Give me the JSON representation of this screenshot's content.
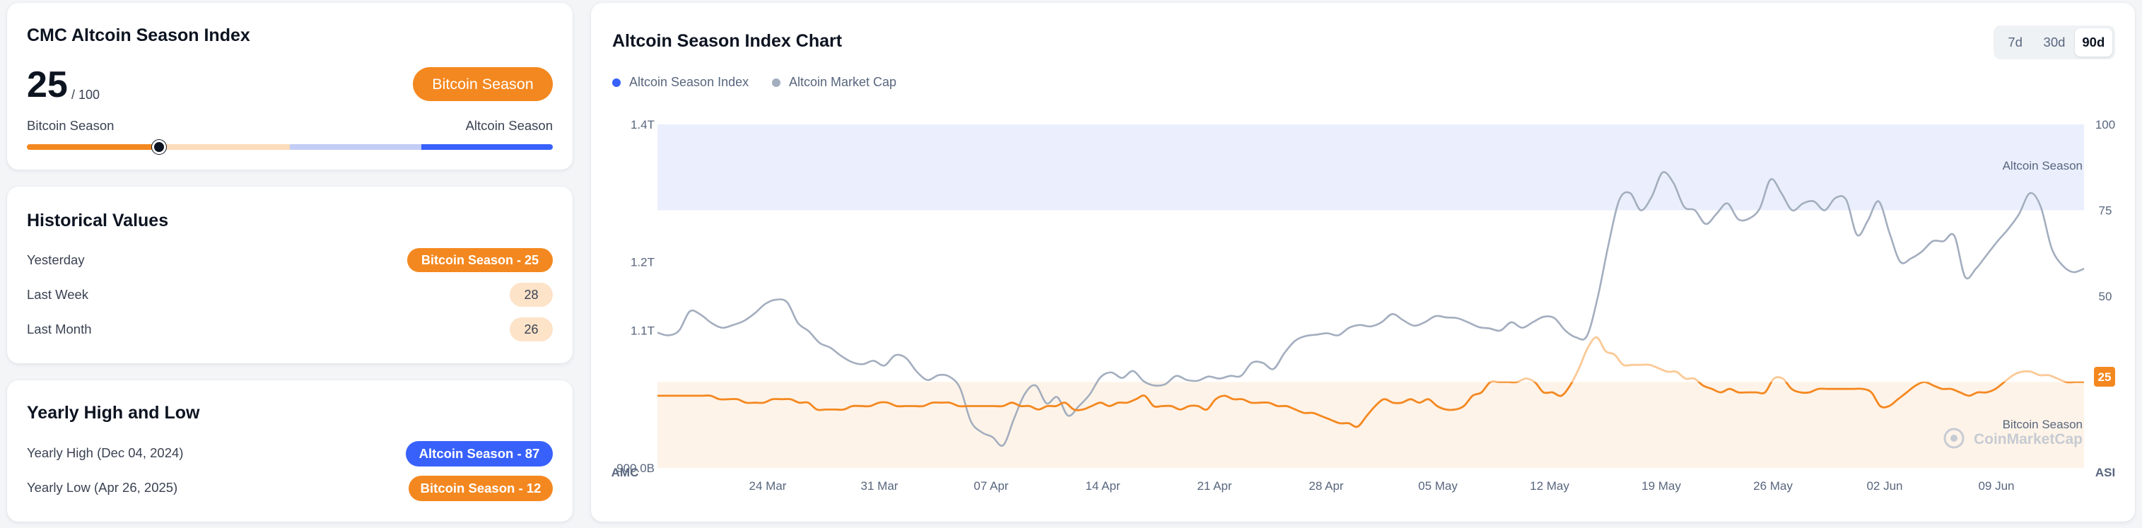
{
  "season_card": {
    "title": "CMC Altcoin Season Index",
    "score": "25",
    "score_denominator": "/ 100",
    "season_label": "Bitcoin Season",
    "gauge_left_label": "Bitcoin Season",
    "gauge_right_label": "Altcoin Season",
    "gauge_value": 25
  },
  "historical": {
    "title": "Historical Values",
    "rows": [
      {
        "label": "Yesterday",
        "value": "Bitcoin Season - 25"
      },
      {
        "label": "Last Week",
        "value": "28"
      },
      {
        "label": "Last Month",
        "value": "26"
      }
    ]
  },
  "yearly": {
    "title": "Yearly High and Low",
    "rows": [
      {
        "label": "Yearly High (Dec 04, 2024)",
        "value": "Altcoin Season - 87"
      },
      {
        "label": "Yearly Low (Apr 26, 2025)",
        "value": "Bitcoin Season - 12"
      }
    ]
  },
  "chart_card": {
    "title": "Altcoin Season Index Chart",
    "ranges": [
      "7d",
      "30d",
      "90d"
    ],
    "active_range": "90d",
    "legend": [
      "Altcoin Season Index",
      "Altcoin Market Cap"
    ],
    "watermark": "CoinMarketCap",
    "zone_top_label": "Altcoin Season",
    "zone_bottom_label": "Bitcoin Season",
    "left_axis_title": "AMC",
    "right_axis_title": "ASI",
    "current_badge": "25"
  },
  "colors": {
    "bitcoin_orange": "#f48820",
    "altcoin_blue": "#3861fb",
    "marketcap_gray": "#a3aebf",
    "altcoin_zone": "#ebeffd",
    "bitcoin_zone": "#fef3e8"
  },
  "chart_data": {
    "type": "line",
    "x_ticks": [
      "24 Mar",
      "31 Mar",
      "07 Apr",
      "14 Apr",
      "21 Apr",
      "28 Apr",
      "05 May",
      "12 May",
      "19 May",
      "26 May",
      "02 Jun",
      "09 Jun"
    ],
    "left_axis": {
      "title": "AMC",
      "ticks": [
        "900.0B",
        "1.1T",
        "1.2T",
        "1.4T"
      ],
      "tick_values": [
        900,
        1100,
        1200,
        1400
      ],
      "range": [
        900,
        1400
      ],
      "unit": "B"
    },
    "right_axis": {
      "title": "ASI",
      "ticks": [
        "25",
        "50",
        "75",
        "100"
      ],
      "range": [
        0,
        100
      ]
    },
    "zones": [
      {
        "label": "Altcoin Season",
        "from": 75,
        "to": 100
      },
      {
        "label": "Bitcoin Season",
        "from": 0,
        "to": 25
      }
    ],
    "series": [
      {
        "name": "Altcoin Market Cap",
        "axis": "left",
        "values": [
          1097,
          1093,
          1100,
          1128,
          1123,
          1111,
          1104,
          1108,
          1114,
          1125,
          1139,
          1145,
          1141,
          1111,
          1099,
          1082,
          1075,
          1063,
          1054,
          1051,
          1056,
          1049,
          1064,
          1060,
          1040,
          1028,
          1035,
          1033,
          1016,
          968,
          952,
          945,
          933,
          972,
          1008,
          1020,
          994,
          1003,
          976,
          990,
          1007,
          1032,
          1039,
          1031,
          1041,
          1026,
          1020,
          1022,
          1034,
          1028,
          1027,
          1033,
          1030,
          1034,
          1034,
          1053,
          1053,
          1044,
          1067,
          1085,
          1092,
          1094,
          1096,
          1093,
          1104,
          1108,
          1106,
          1112,
          1124,
          1115,
          1107,
          1112,
          1121,
          1119,
          1118,
          1112,
          1105,
          1103,
          1100,
          1112,
          1104,
          1112,
          1120,
          1118,
          1100,
          1090,
          1092,
          1148,
          1225,
          1290,
          1300,
          1275,
          1295,
          1330,
          1315,
          1280,
          1275,
          1255,
          1270,
          1285,
          1262,
          1263,
          1278,
          1320,
          1300,
          1275,
          1285,
          1288,
          1275,
          1293,
          1290,
          1239,
          1260,
          1288,
          1242,
          1200,
          1205,
          1215,
          1230,
          1230,
          1238,
          1178,
          1190,
          1210,
          1230,
          1248,
          1270,
          1300,
          1280,
          1220,
          1195,
          1185,
          1190
        ]
      },
      {
        "name": "Altcoin Season Index",
        "axis": "right",
        "values": [
          21,
          21,
          21,
          21,
          21,
          21,
          21,
          20,
          20,
          20,
          19,
          19,
          19,
          20,
          20,
          20,
          19,
          19,
          17,
          17,
          17,
          17,
          18,
          18,
          18,
          19,
          19,
          18,
          18,
          18,
          18,
          19,
          19,
          19,
          18,
          18,
          18,
          18,
          18,
          18,
          19,
          18,
          18,
          17,
          18,
          18,
          19,
          17,
          17,
          18,
          19,
          18,
          19,
          19,
          20,
          21,
          18,
          18,
          18,
          17,
          18,
          18,
          17,
          20,
          21,
          20,
          20,
          19,
          19,
          19,
          18,
          18,
          17,
          16,
          16,
          15,
          14,
          13,
          13,
          12,
          15,
          18,
          20,
          19,
          19,
          20,
          19,
          20,
          18,
          17,
          17,
          18,
          21,
          22,
          25,
          25,
          25,
          25,
          26,
          25,
          22,
          22,
          21,
          24,
          29,
          35,
          38,
          34,
          33,
          30,
          30,
          30,
          30,
          29,
          28,
          28,
          26,
          26,
          24,
          23,
          22,
          23,
          22,
          22,
          22,
          22,
          26,
          26,
          23,
          22,
          22,
          23,
          23,
          23,
          23,
          23,
          23,
          22,
          18,
          18,
          20,
          22,
          24,
          25,
          24,
          23,
          23,
          22,
          21,
          22,
          22,
          23,
          25,
          27,
          28,
          28,
          27,
          27,
          26,
          25,
          25,
          25
        ]
      }
    ]
  }
}
